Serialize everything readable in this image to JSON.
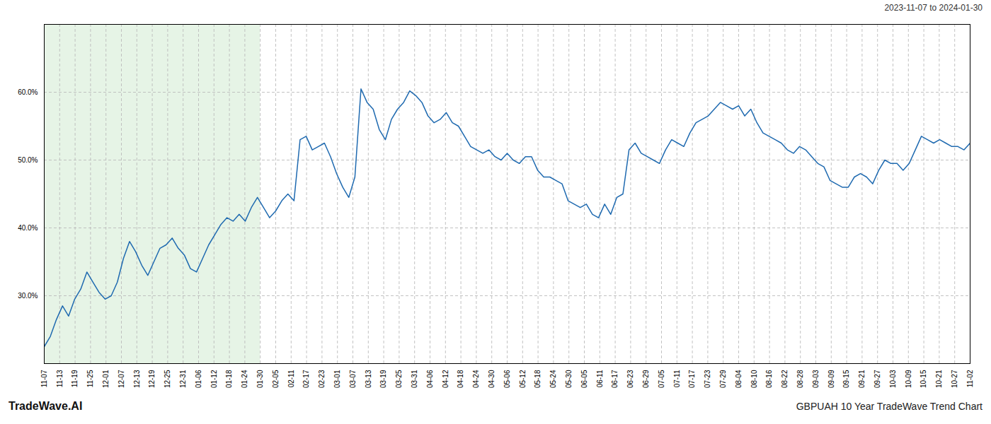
{
  "chart_data": {
    "type": "line",
    "title": "2023-11-07 to 2024-01-30",
    "annotations": [
      "TradeWave.AI",
      "GBPUAH 10 Year TradeWave Trend Chart"
    ],
    "color": "#1f6ab0",
    "grid": true,
    "xlim": [
      0,
      60
    ],
    "xticks": [
      {
        "value": 0,
        "label": "11-07"
      },
      {
        "value": 1,
        "label": "11-13"
      },
      {
        "value": 2,
        "label": "11-19"
      },
      {
        "value": 3,
        "label": "11-25"
      },
      {
        "value": 4,
        "label": "12-01"
      },
      {
        "value": 5,
        "label": "12-07"
      },
      {
        "value": 6,
        "label": "12-13"
      },
      {
        "value": 7,
        "label": "12-19"
      },
      {
        "value": 8,
        "label": "12-25"
      },
      {
        "value": 9,
        "label": "12-31"
      },
      {
        "value": 10,
        "label": "01-06"
      },
      {
        "value": 11,
        "label": "01-12"
      },
      {
        "value": 12,
        "label": "01-18"
      },
      {
        "value": 13,
        "label": "01-24"
      },
      {
        "value": 14,
        "label": "01-30"
      },
      {
        "value": 15,
        "label": "02-05"
      },
      {
        "value": 16,
        "label": "02-11"
      },
      {
        "value": 17,
        "label": "02-17"
      },
      {
        "value": 18,
        "label": "02-23"
      },
      {
        "value": 19,
        "label": "03-01"
      },
      {
        "value": 20,
        "label": "03-07"
      },
      {
        "value": 21,
        "label": "03-13"
      },
      {
        "value": 22,
        "label": "03-19"
      },
      {
        "value": 23,
        "label": "03-25"
      },
      {
        "value": 24,
        "label": "03-31"
      },
      {
        "value": 25,
        "label": "04-06"
      },
      {
        "value": 26,
        "label": "04-12"
      },
      {
        "value": 27,
        "label": "04-18"
      },
      {
        "value": 28,
        "label": "04-24"
      },
      {
        "value": 29,
        "label": "04-30"
      },
      {
        "value": 30,
        "label": "05-06"
      },
      {
        "value": 31,
        "label": "05-12"
      },
      {
        "value": 32,
        "label": "05-18"
      },
      {
        "value": 33,
        "label": "05-24"
      },
      {
        "value": 34,
        "label": "05-30"
      },
      {
        "value": 35,
        "label": "06-05"
      },
      {
        "value": 36,
        "label": "06-11"
      },
      {
        "value": 37,
        "label": "06-17"
      },
      {
        "value": 38,
        "label": "06-23"
      },
      {
        "value": 39,
        "label": "06-29"
      },
      {
        "value": 40,
        "label": "07-05"
      },
      {
        "value": 41,
        "label": "07-11"
      },
      {
        "value": 42,
        "label": "07-17"
      },
      {
        "value": 43,
        "label": "07-23"
      },
      {
        "value": 44,
        "label": "07-29"
      },
      {
        "value": 45,
        "label": "08-04"
      },
      {
        "value": 46,
        "label": "08-10"
      },
      {
        "value": 47,
        "label": "08-16"
      },
      {
        "value": 48,
        "label": "08-22"
      },
      {
        "value": 49,
        "label": "08-28"
      },
      {
        "value": 50,
        "label": "09-03"
      },
      {
        "value": 51,
        "label": "09-09"
      },
      {
        "value": 52,
        "label": "09-15"
      },
      {
        "value": 53,
        "label": "09-21"
      },
      {
        "value": 54,
        "label": "09-27"
      },
      {
        "value": 55,
        "label": "10-03"
      },
      {
        "value": 56,
        "label": "10-09"
      },
      {
        "value": 57,
        "label": "10-15"
      },
      {
        "value": 58,
        "label": "10-21"
      },
      {
        "value": 59,
        "label": "10-27"
      },
      {
        "value": 60,
        "label": "11-02"
      }
    ],
    "ylim": [
      20,
      70
    ],
    "yticks": [
      {
        "value": 30.0,
        "label": "30.0%"
      },
      {
        "value": 40.0,
        "label": "40.0%"
      },
      {
        "value": 50.0,
        "label": "50.0%"
      },
      {
        "value": 60.0,
        "label": "60.0%"
      }
    ],
    "shaded_range": {
      "from": 0,
      "to": 14,
      "color": "#d6ecd6"
    },
    "x": [
      0,
      0.394737,
      0.789474,
      1.184211,
      1.578947,
      1.973684,
      2.368421,
      2.763158,
      3.157895,
      3.552632,
      3.947368,
      4.342105,
      4.736842,
      5.131579,
      5.526316,
      5.921053,
      6.315789,
      6.710526,
      7.105263,
      7.5,
      7.894737,
      8.289474,
      8.684211,
      9.078947,
      9.473684,
      9.868421,
      10.263158,
      10.657895,
      11.052632,
      11.447368,
      11.842105,
      12.236842,
      12.631579,
      13.026316,
      13.421053,
      13.815789,
      14.210526,
      14.605263,
      15,
      15.394737,
      15.789474,
      16.184211,
      16.578947,
      16.973684,
      17.368421,
      17.763158,
      18.157895,
      18.552632,
      18.947368,
      19.342105,
      19.736842,
      20.131579,
      20.526316,
      20.921053,
      21.315789,
      21.710526,
      22.105263,
      22.5,
      22.894737,
      23.289474,
      23.684211,
      24.078947,
      24.473684,
      24.868421,
      25.263158,
      25.657895,
      26.052632,
      26.447368,
      26.842105,
      27.236842,
      27.631579,
      28.026316,
      28.421053,
      28.815789,
      29.210526,
      29.605263,
      30,
      30.394737,
      30.789474,
      31.184211,
      31.578947,
      31.973684,
      32.368421,
      32.763158,
      33.157895,
      33.552632,
      33.947368,
      34.342105,
      34.736842,
      35.131579,
      35.526316,
      35.921053,
      36.315789,
      36.710526,
      37.105263,
      37.5,
      37.894737,
      38.289474,
      38.684211,
      39.078947,
      39.473684,
      39.868421,
      40.263158,
      40.657895,
      41.052632,
      41.447368,
      41.842105,
      42.236842,
      42.631579,
      43.026316,
      43.421053,
      43.815789,
      44.210526,
      44.605263,
      45,
      45.394737,
      45.789474,
      46.184211,
      46.578947,
      46.973684,
      47.368421,
      47.763158,
      48.157895,
      48.552632,
      48.947368,
      49.342105,
      49.736842,
      50.131579,
      50.526316,
      50.921053,
      51.315789,
      51.710526,
      52.105263,
      52.5,
      52.894737,
      53.289474,
      53.684211,
      54.078947,
      54.473684,
      54.868421,
      55.263158,
      55.657895,
      56.052632,
      56.447368,
      56.842105,
      57.236842,
      57.631579,
      58.026316,
      58.421053,
      58.815789,
      59.210526,
      59.605263,
      60
    ],
    "values": [
      22.5,
      24.0,
      26.5,
      28.5,
      27.0,
      29.5,
      31.0,
      33.5,
      32.0,
      30.5,
      29.5,
      30.0,
      32.0,
      35.5,
      38.0,
      36.5,
      34.5,
      33.0,
      35.0,
      37.0,
      37.5,
      38.5,
      37.0,
      36.0,
      34.0,
      33.5,
      35.5,
      37.5,
      39.0,
      40.5,
      41.5,
      41.0,
      42.0,
      41.0,
      43.0,
      44.5,
      43.0,
      41.5,
      42.5,
      44.0,
      45.0,
      44.0,
      53.0,
      53.5,
      51.5,
      52.0,
      52.5,
      50.5,
      48.0,
      46.0,
      44.5,
      47.5,
      60.5,
      58.5,
      57.5,
      54.5,
      53.0,
      56.0,
      57.5,
      58.5,
      60.2,
      59.5,
      58.5,
      56.5,
      55.5,
      56.0,
      57.0,
      55.5,
      55.0,
      53.5,
      52.0,
      51.5,
      51.0,
      51.5,
      50.5,
      50.0,
      51.0,
      50.0,
      49.5,
      50.5,
      50.5,
      48.5,
      47.5,
      47.5,
      47.0,
      46.5,
      44.0,
      43.5,
      43.0,
      43.5,
      42.0,
      41.5,
      43.5,
      42.0,
      44.5,
      45.0,
      51.5,
      52.5,
      51.0,
      50.5,
      50.0,
      49.5,
      51.5,
      53.0,
      52.5,
      52.0,
      54.0,
      55.5,
      56.0,
      56.5,
      57.5,
      58.5,
      58.0,
      57.5,
      58.0,
      56.5,
      57.5,
      55.5,
      54.0,
      53.5,
      53.0,
      52.5,
      51.5,
      51.0,
      52.0,
      51.5,
      50.5,
      49.5,
      49.0,
      47.0,
      46.5,
      46.0,
      46.0,
      47.5,
      48.0,
      47.5,
      46.5,
      48.5,
      50.0,
      49.5,
      49.5,
      48.5,
      49.5,
      51.5,
      53.5,
      53.0,
      52.5,
      53.0,
      52.5,
      52.0,
      52.0,
      51.5,
      52.5
    ]
  }
}
